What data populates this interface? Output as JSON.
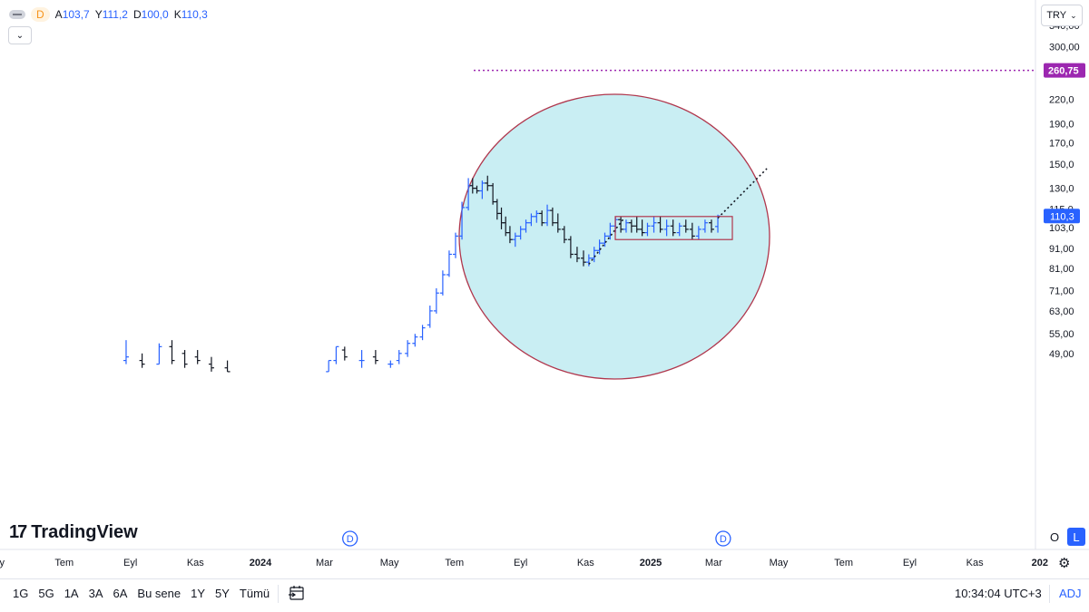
{
  "header": {
    "interval": "D",
    "ohlc": [
      {
        "k": "A",
        "v": "103,7"
      },
      {
        "k": "Y",
        "v": "111,2"
      },
      {
        "k": "D",
        "v": "100,0"
      },
      {
        "k": "K",
        "v": "110,3"
      }
    ],
    "currency": "TRY"
  },
  "chart_data": {
    "type": "ohlc-bar",
    "y_scale": "log",
    "y_ticks": [
      {
        "value": 340,
        "label": "340,00"
      },
      {
        "value": 300,
        "label": "300,00"
      },
      {
        "value": 220,
        "label": "220,0"
      },
      {
        "value": 190,
        "label": "190,0"
      },
      {
        "value": 170,
        "label": "170,0"
      },
      {
        "value": 150,
        "label": "150,0"
      },
      {
        "value": 130,
        "label": "130,0"
      },
      {
        "value": 115,
        "label": "115,0"
      },
      {
        "value": 103,
        "label": "103,0"
      },
      {
        "value": 91,
        "label": "91,00"
      },
      {
        "value": 81,
        "label": "81,00"
      },
      {
        "value": 71,
        "label": "71,00"
      },
      {
        "value": 63,
        "label": "63,00"
      },
      {
        "value": 55,
        "label": "55,00"
      },
      {
        "value": 49,
        "label": "49,00"
      }
    ],
    "x_ticks": [
      {
        "date": "2023-05-01",
        "label": "ay"
      },
      {
        "date": "2023-07-01",
        "label": "Tem"
      },
      {
        "date": "2023-09-01",
        "label": "Eyl"
      },
      {
        "date": "2023-11-01",
        "label": "Kas"
      },
      {
        "date": "2024-01-01",
        "label": "2024"
      },
      {
        "date": "2024-03-01",
        "label": "Mar"
      },
      {
        "date": "2024-05-01",
        "label": "May"
      },
      {
        "date": "2024-07-01",
        "label": "Tem"
      },
      {
        "date": "2024-09-01",
        "label": "Eyl"
      },
      {
        "date": "2024-11-01",
        "label": "Kas"
      },
      {
        "date": "2025-01-01",
        "label": "2025"
      },
      {
        "date": "2025-03-01",
        "label": "Mar"
      },
      {
        "date": "2025-05-01",
        "label": "May"
      },
      {
        "date": "2025-07-01",
        "label": "Tem"
      },
      {
        "date": "2025-09-01",
        "label": "Eyl"
      },
      {
        "date": "2025-11-01",
        "label": "Kas"
      },
      {
        "date": "2026-01-01",
        "label": "202"
      }
    ],
    "bars": [
      {
        "date": "2023-08-10",
        "o": 46,
        "h": 50,
        "l": 45,
        "c": 47
      },
      {
        "date": "2023-08-28",
        "o": 47,
        "h": 53,
        "l": 46,
        "c": 48
      },
      {
        "date": "2023-09-12",
        "o": 47,
        "h": 49,
        "l": 45,
        "c": 46
      },
      {
        "date": "2023-09-28",
        "o": 46,
        "h": 52,
        "l": 46,
        "c": 51
      },
      {
        "date": "2023-10-10",
        "o": 51,
        "h": 53,
        "l": 46,
        "c": 47
      },
      {
        "date": "2023-10-22",
        "o": 49,
        "h": 50,
        "l": 45,
        "c": 46
      },
      {
        "date": "2023-11-03",
        "o": 48,
        "h": 50,
        "l": 46,
        "c": 47
      },
      {
        "date": "2023-11-16",
        "o": 46,
        "h": 48,
        "l": 44,
        "c": 45
      },
      {
        "date": "2023-12-01",
        "o": 45,
        "h": 47,
        "l": 44,
        "c": 44
      },
      {
        "date": "2023-12-18",
        "o": 44,
        "h": 46,
        "l": 43,
        "c": 45
      },
      {
        "date": "2024-01-04",
        "o": 45,
        "h": 47,
        "l": 44,
        "c": 46
      },
      {
        "date": "2024-01-20",
        "o": 44,
        "h": 46,
        "l": 43,
        "c": 45
      },
      {
        "date": "2024-02-05",
        "o": 44,
        "h": 45,
        "l": 43,
        "c": 44
      },
      {
        "date": "2024-02-22",
        "o": 44,
        "h": 46,
        "l": 43,
        "c": 45
      },
      {
        "date": "2024-03-10",
        "o": 45,
        "h": 47,
        "l": 44,
        "c": 46
      },
      {
        "date": "2024-03-28",
        "o": 46,
        "h": 48,
        "l": 45,
        "c": 47
      },
      {
        "date": "2024-04-10",
        "o": 46,
        "h": 48,
        "l": 45,
        "c": 46
      },
      {
        "date": "2024-04-25",
        "o": 44,
        "h": 46,
        "l": 43,
        "c": 45
      }
    ],
    "bars2": [
      {
        "date": "2024-03-05",
        "o": 44,
        "h": 47,
        "l": 44,
        "c": 47
      },
      {
        "date": "2024-03-12",
        "o": 47,
        "h": 51,
        "l": 46,
        "c": 51
      },
      {
        "date": "2024-03-20",
        "o": 50,
        "h": 51,
        "l": 47,
        "c": 48
      },
      {
        "date": "2024-04-05",
        "o": 47,
        "h": 50,
        "l": 45,
        "c": 47
      },
      {
        "date": "2024-04-18",
        "o": 48,
        "h": 50,
        "l": 46,
        "c": 47
      },
      {
        "date": "2024-05-02",
        "o": 46,
        "h": 47,
        "l": 45,
        "c": 46
      },
      {
        "date": "2024-05-10",
        "o": 47,
        "h": 50,
        "l": 46,
        "c": 49
      },
      {
        "date": "2024-05-18",
        "o": 49,
        "h": 53,
        "l": 48,
        "c": 52
      },
      {
        "date": "2024-05-25",
        "o": 52,
        "h": 55,
        "l": 51,
        "c": 54
      },
      {
        "date": "2024-06-01",
        "o": 54,
        "h": 58,
        "l": 53,
        "c": 57
      },
      {
        "date": "2024-06-08",
        "o": 58,
        "h": 65,
        "l": 57,
        "c": 63
      },
      {
        "date": "2024-06-14",
        "o": 63,
        "h": 72,
        "l": 62,
        "c": 70
      },
      {
        "date": "2024-06-20",
        "o": 70,
        "h": 80,
        "l": 69,
        "c": 78
      },
      {
        "date": "2024-06-26",
        "o": 78,
        "h": 90,
        "l": 77,
        "c": 88
      },
      {
        "date": "2024-07-02",
        "o": 88,
        "h": 100,
        "l": 86,
        "c": 98
      },
      {
        "date": "2024-07-08",
        "o": 98,
        "h": 120,
        "l": 96,
        "c": 116
      },
      {
        "date": "2024-07-14",
        "o": 116,
        "h": 138,
        "l": 114,
        "c": 132
      },
      {
        "date": "2024-07-18",
        "o": 132,
        "h": 138,
        "l": 126,
        "c": 130
      },
      {
        "date": "2024-07-22",
        "o": 130,
        "h": 132,
        "l": 126,
        "c": 128
      },
      {
        "date": "2024-07-27",
        "o": 128,
        "h": 136,
        "l": 122,
        "c": 134
      },
      {
        "date": "2024-08-01",
        "o": 134,
        "h": 140,
        "l": 128,
        "c": 132
      }
    ]
  },
  "drawings": {
    "horizontal_level": {
      "value": 260.75,
      "label": "260,75"
    },
    "last_price": {
      "value": 110.3,
      "label": "110,3"
    },
    "event_markers": [
      {
        "date": "2024-03-25",
        "label": "D"
      },
      {
        "date": "2025-03-10",
        "label": "D"
      }
    ]
  },
  "logo": {
    "text": "TradingView"
  },
  "scale_buttons": {
    "o": "O",
    "l": "L"
  },
  "bottom_bar": {
    "periods": [
      "1G",
      "5G",
      "1A",
      "3A",
      "6A",
      "Bu sene",
      "1Y",
      "5Y",
      "Tümü"
    ],
    "time": "10:34:04 UTC+3",
    "adj": "ADJ"
  },
  "colors": {
    "up": "#2962ff",
    "down": "#131722",
    "circle_fill": "#c9eef3",
    "circle_stroke": "#b0374d",
    "level_line": "#9c27b0",
    "last_price_bg": "#2962ff"
  }
}
